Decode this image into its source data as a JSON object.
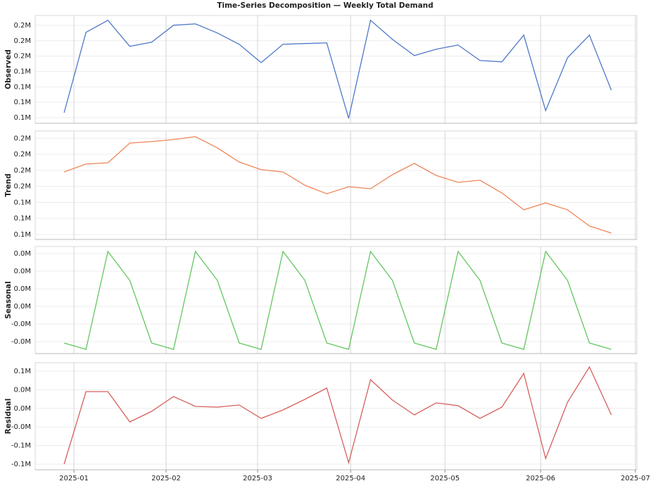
{
  "title": "Time-Series Decomposition — Weekly Total Demand",
  "chart_data": [
    {
      "type": "line",
      "ylabel": "Observed",
      "color": "#4f78c9",
      "grid": true,
      "values": [
        114000,
        179300,
        189100,
        167900,
        171300,
        185100,
        186200,
        178800,
        169600,
        154700,
        169600,
        170200,
        170700,
        109400,
        189100,
        173600,
        160400,
        165600,
        169000,
        156400,
        155300,
        177000,
        115700,
        158700,
        177000,
        132300
      ],
      "ylim": [
        105400,
        193000
      ],
      "yticks": [
        {
          "value": 110000,
          "label": "0.1M"
        },
        {
          "value": 122500,
          "label": "0.1M"
        },
        {
          "value": 135000,
          "label": "0.1M"
        },
        {
          "value": 147500,
          "label": "0.1M"
        },
        {
          "value": 160000,
          "label": "0.2M"
        },
        {
          "value": 172500,
          "label": "0.2M"
        },
        {
          "value": 185000,
          "label": "0.2M"
        }
      ]
    },
    {
      "type": "line",
      "ylabel": "Trend",
      "color": "#ee8659",
      "grid": true,
      "values": [
        164000,
        168900,
        169700,
        182000,
        182900,
        184200,
        186000,
        179000,
        170200,
        165400,
        164000,
        155700,
        150400,
        154800,
        153500,
        162300,
        169300,
        161800,
        157500,
        158800,
        150900,
        140400,
        144700,
        140400,
        130300,
        125900
      ],
      "ylim": [
        121900,
        189500
      ],
      "yticks": [
        {
          "value": 125000,
          "label": "0.1M"
        },
        {
          "value": 135000,
          "label": "0.1M"
        },
        {
          "value": 145000,
          "label": "0.1M"
        },
        {
          "value": 155000,
          "label": "0.2M"
        },
        {
          "value": 165000,
          "label": "0.2M"
        },
        {
          "value": 175000,
          "label": "0.2M"
        },
        {
          "value": 185000,
          "label": "0.2M"
        }
      ]
    },
    {
      "type": "line",
      "ylabel": "Seasonal",
      "color": "#62c660",
      "grid": true,
      "values": [
        -8320,
        -9760,
        12480,
        5920,
        -8320,
        -9760,
        12480,
        5920,
        -8320,
        -9760,
        12480,
        5920,
        -8320,
        -9760,
        12480,
        5920,
        -8320,
        -9760,
        12480,
        5920,
        -8320,
        -9760,
        12480,
        5920,
        -8320,
        -9760
      ],
      "ylim": [
        -10720,
        13600
      ],
      "yticks": [
        {
          "value": -8000,
          "label": "-0.0M"
        },
        {
          "value": -4000,
          "label": "-0.0M"
        },
        {
          "value": 0,
          "label": "0.0M"
        },
        {
          "value": 4000,
          "label": "0.0M"
        },
        {
          "value": 8000,
          "label": "0.0M"
        },
        {
          "value": 12000,
          "label": "0.0M"
        }
      ]
    },
    {
      "type": "line",
      "ylabel": "Residual",
      "color": "#d6605c",
      "grid": true,
      "values": [
        -85000,
        32000,
        32000,
        -16800,
        200,
        24100,
        8200,
        7000,
        10400,
        -11200,
        2500,
        19500,
        37700,
        -82700,
        51300,
        18400,
        -5500,
        13800,
        9300,
        -11200,
        7000,
        61500,
        -75900,
        15000,
        71800,
        -5500
      ],
      "ylim": [
        -94100,
        78600
      ],
      "yticks": [
        {
          "value": -85000,
          "label": "-0.1M"
        },
        {
          "value": -55000,
          "label": "-0.1M"
        },
        {
          "value": -25000,
          "label": "-0.0M"
        },
        {
          "value": 5000,
          "label": "0.0M"
        },
        {
          "value": 35000,
          "label": "0.0M"
        },
        {
          "value": 65000,
          "label": "0.1M"
        }
      ],
      "xlim": [
        -1.32,
        26.17
      ],
      "xticks": [
        {
          "value": 0.45,
          "label": "2025-01"
        },
        {
          "value": 4.66,
          "label": "2025-02"
        },
        {
          "value": 8.84,
          "label": "2025-03"
        },
        {
          "value": 13.09,
          "label": "2025-04"
        },
        {
          "value": 17.4,
          "label": "2025-05"
        },
        {
          "value": 21.77,
          "label": "2025-06"
        },
        {
          "value": 26.1,
          "label": "2025-07"
        }
      ]
    }
  ]
}
